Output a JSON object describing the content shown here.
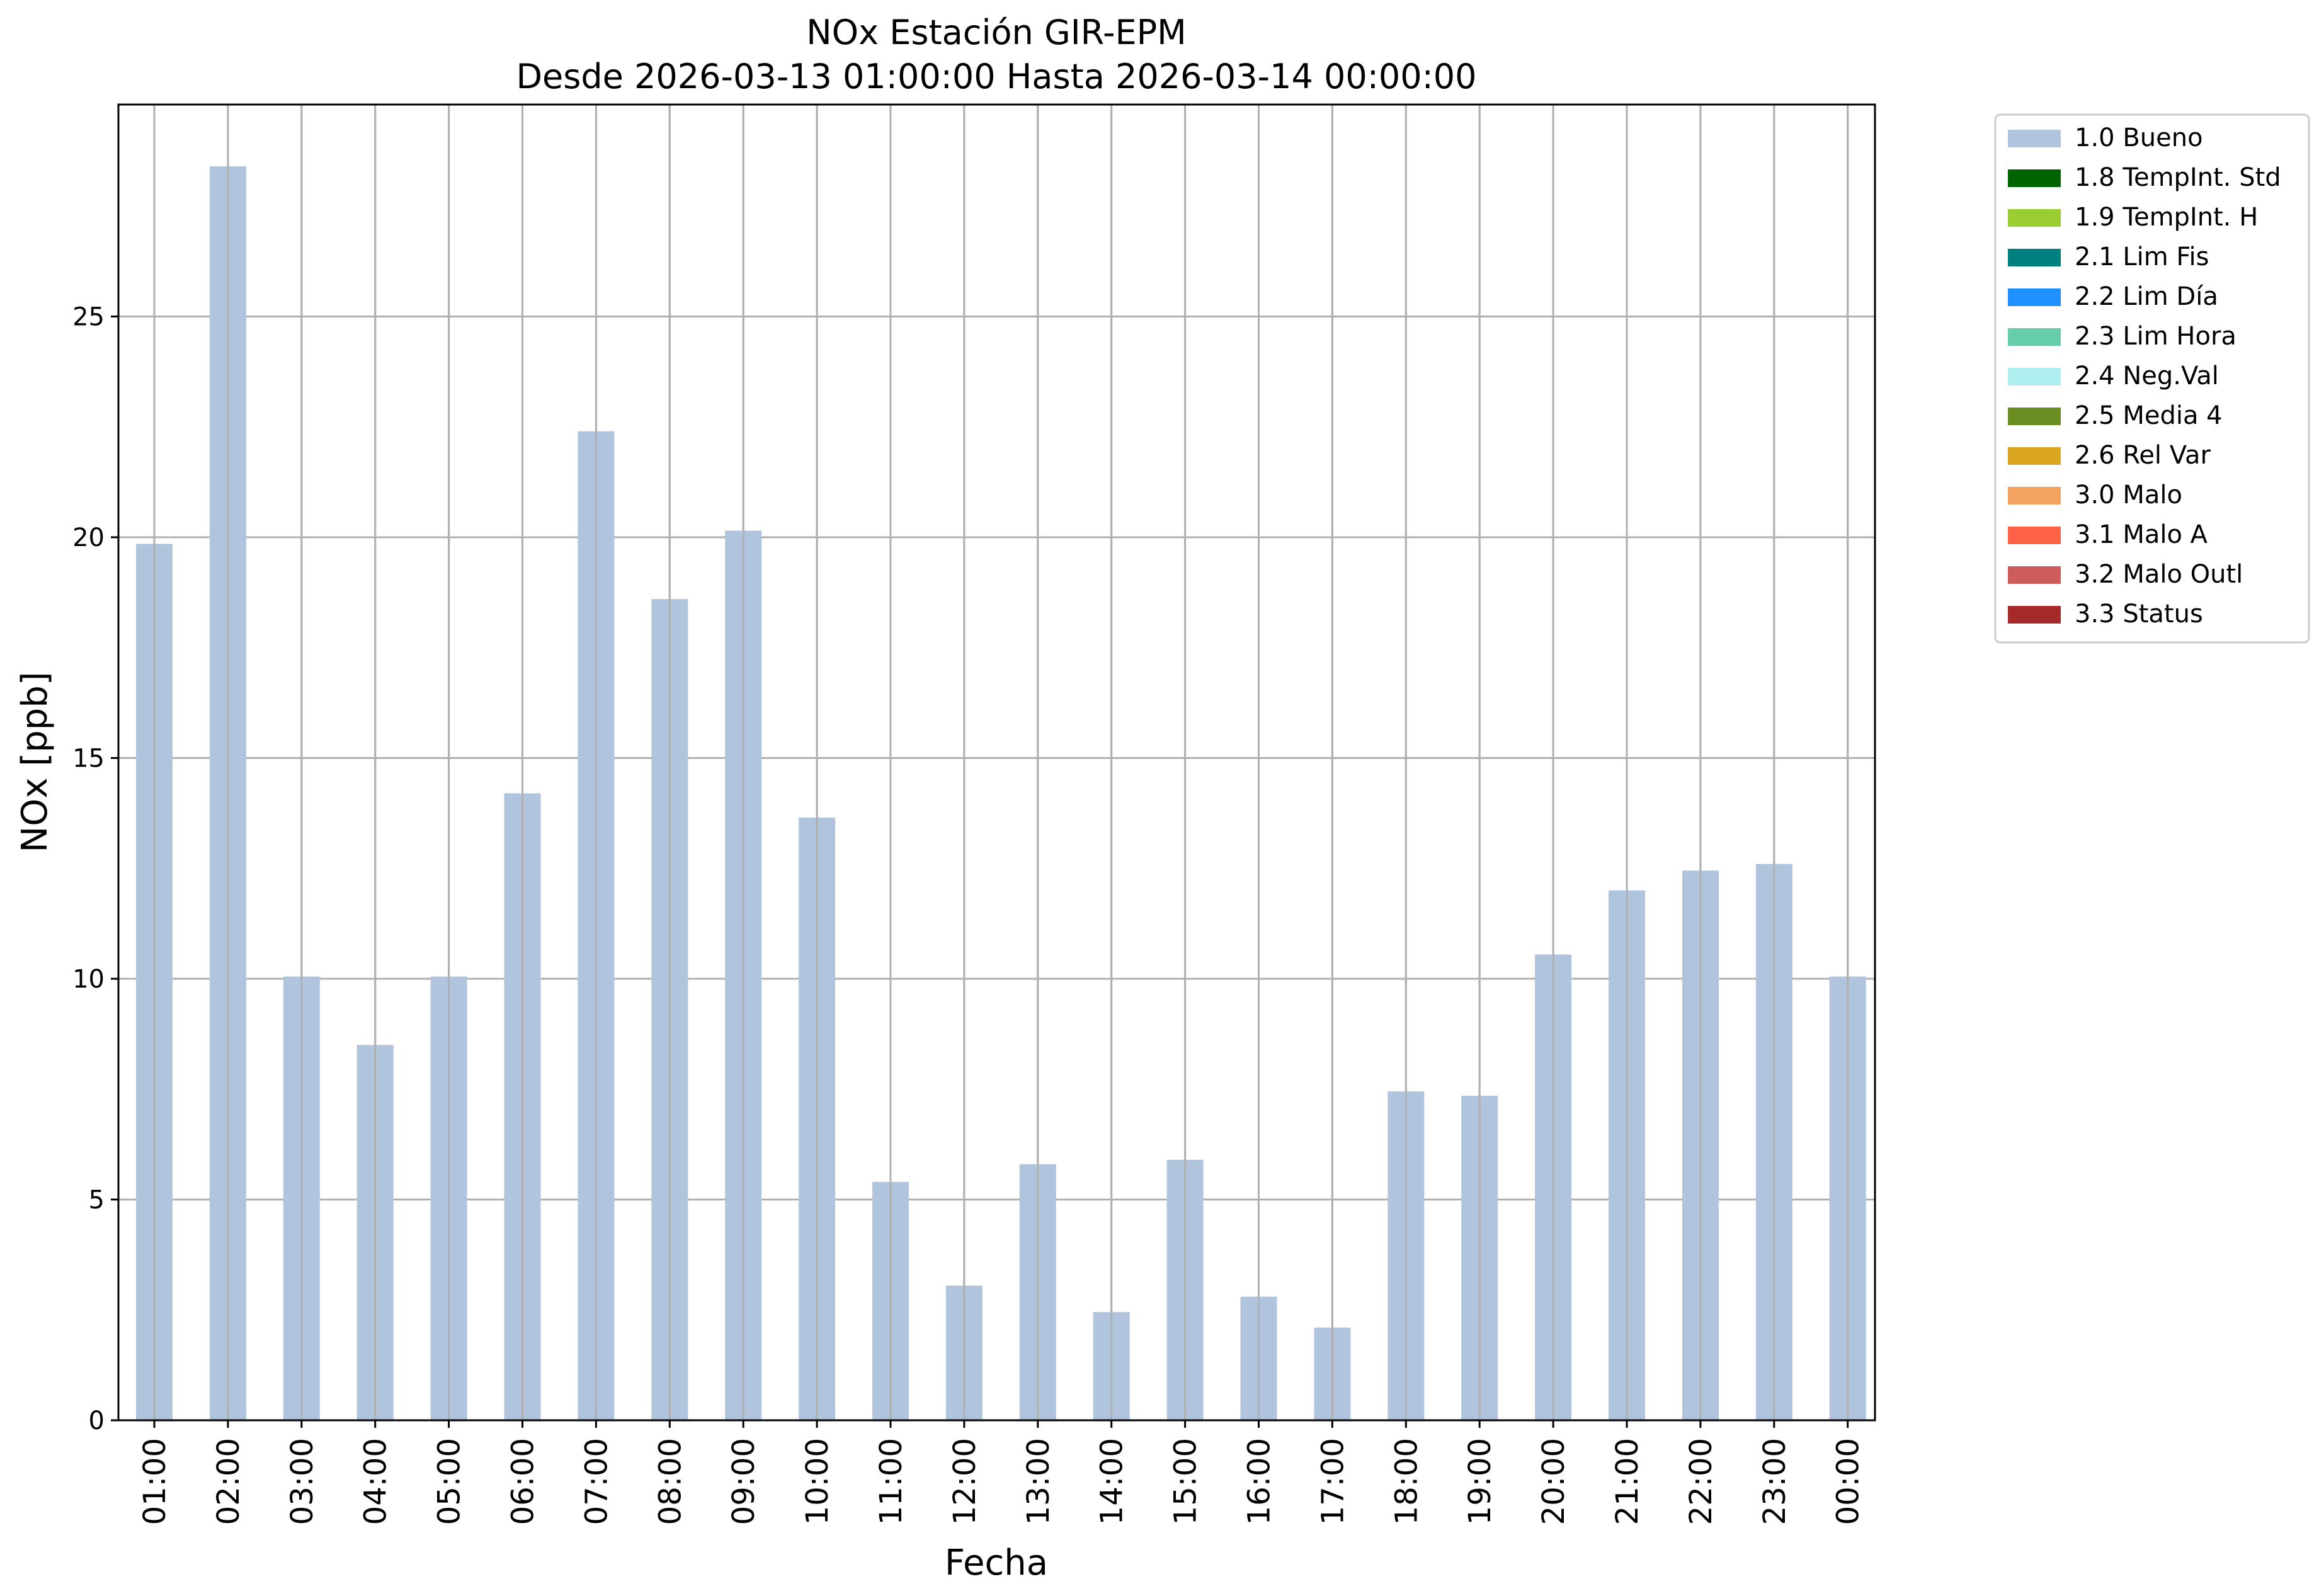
{
  "chart_data": {
    "type": "bar",
    "title": "NOx Estación GIR-EPM",
    "subtitle": "Desde 2026-03-13 01:00:00 Hasta 2026-03-14 00:00:00",
    "xlabel": "Fecha",
    "ylabel": "NOx [ppb]",
    "ylim": [
      0,
      29.8
    ],
    "yticks": [
      "0",
      "5",
      "10",
      "15",
      "20",
      "25"
    ],
    "grid": true,
    "legend_placement": "outside-top-right",
    "bar_color": "#b0c4de",
    "grid_color": "#b0b0b0",
    "categories": [
      "01:00",
      "02:00",
      "03:00",
      "04:00",
      "05:00",
      "06:00",
      "07:00",
      "08:00",
      "09:00",
      "10:00",
      "11:00",
      "12:00",
      "13:00",
      "14:00",
      "15:00",
      "16:00",
      "17:00",
      "18:00",
      "19:00",
      "20:00",
      "21:00",
      "22:00",
      "23:00",
      "00:00"
    ],
    "values": [
      19.85,
      28.4,
      10.05,
      8.5,
      10.05,
      14.2,
      22.4,
      18.6,
      20.15,
      13.65,
      5.4,
      3.05,
      5.8,
      2.45,
      5.9,
      2.8,
      2.1,
      7.45,
      7.35,
      10.55,
      12.0,
      12.45,
      12.6,
      10.05
    ],
    "legend": [
      {
        "label": "1.0 Bueno",
        "color": "#b0c4de"
      },
      {
        "label": "1.8 TempInt. Std",
        "color": "#006400"
      },
      {
        "label": "1.9 TempInt. H",
        "color": "#9acd32"
      },
      {
        "label": "2.1 Lim Fis",
        "color": "#008080"
      },
      {
        "label": "2.2 Lim Día",
        "color": "#1e90ff"
      },
      {
        "label": "2.3 Lim Hora",
        "color": "#66cdaa"
      },
      {
        "label": "2.4 Neg.Val",
        "color": "#afeeee"
      },
      {
        "label": "2.5 Media 4",
        "color": "#6b8e23"
      },
      {
        "label": "2.6 Rel Var",
        "color": "#daa520"
      },
      {
        "label": "3.0 Malo",
        "color": "#f4a460"
      },
      {
        "label": "3.1 Malo A",
        "color": "#ff6347"
      },
      {
        "label": "3.2 Malo Outl",
        "color": "#cd5c5c"
      },
      {
        "label": "3.3 Status",
        "color": "#a52a2a"
      }
    ]
  }
}
